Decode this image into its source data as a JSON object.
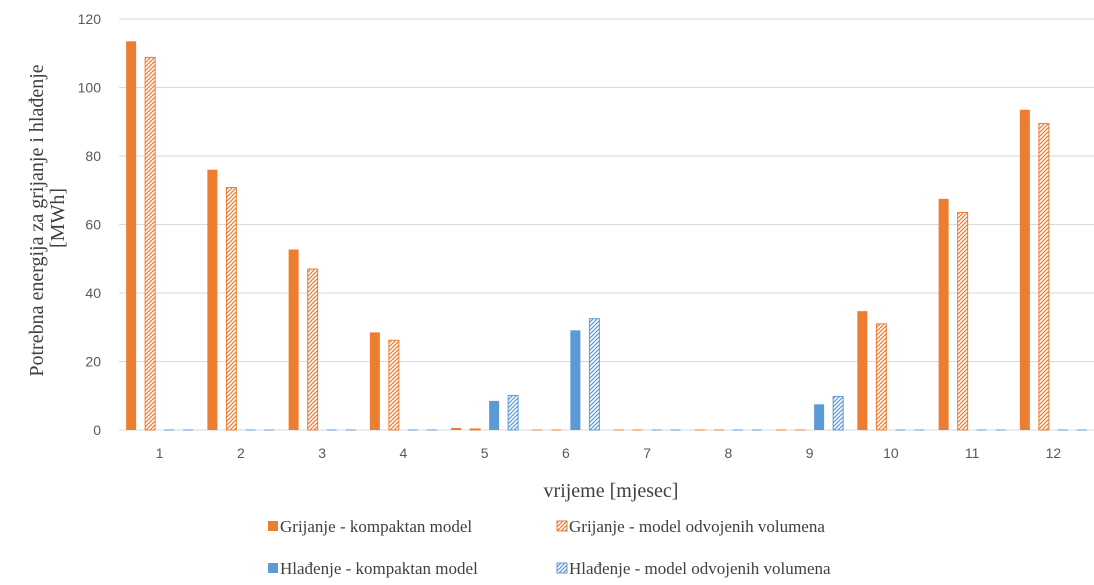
{
  "chart_data": {
    "type": "bar",
    "categories": [
      "1",
      "2",
      "3",
      "4",
      "5",
      "6",
      "7",
      "8",
      "9",
      "10",
      "11",
      "12"
    ],
    "xlabel": "vrijeme [mjesec]",
    "ylabel_line1": "Potrebna energija za grijanje i hlađenje",
    "ylabel_line2": "[MWh]",
    "ylim": [
      0,
      120
    ],
    "yticks": [
      0,
      20,
      40,
      60,
      80,
      100,
      120
    ],
    "grid": true,
    "legend_position": "bottom",
    "series": [
      {
        "name": "Grijanje - kompaktan model",
        "color": "#ED7D31",
        "pattern": "solid",
        "values": [
          113.5,
          76,
          52.7,
          28.5,
          0.6,
          0,
          0,
          0,
          0,
          34.7,
          67.5,
          93.5
        ]
      },
      {
        "name": "Grijanje - model odvojenih volumena",
        "color": "#ED7D31",
        "pattern": "hatched",
        "values": [
          108.8,
          70.8,
          47,
          26.2,
          0.3,
          0,
          0,
          0,
          0,
          31,
          63.5,
          89.5
        ]
      },
      {
        "name": "Hlađenje - kompaktan model",
        "color": "#5B9BD5",
        "pattern": "solid",
        "values": [
          0,
          0,
          0,
          0,
          8.5,
          29.1,
          0,
          0,
          7.5,
          0,
          0,
          0
        ]
      },
      {
        "name": "Hlađenje - model odvojenih volumena",
        "color": "#5B9BD5",
        "pattern": "hatched",
        "values": [
          0,
          0,
          0,
          0,
          10.1,
          32.5,
          0,
          0,
          9.8,
          0,
          0,
          0
        ]
      }
    ]
  }
}
